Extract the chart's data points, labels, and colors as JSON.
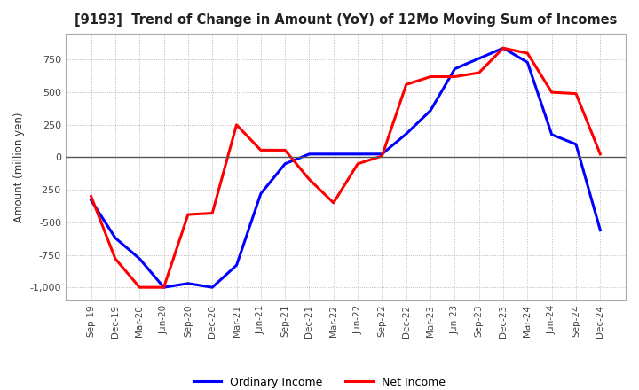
{
  "title": "[9193]  Trend of Change in Amount (YoY) of 12Mo Moving Sum of Incomes",
  "ylabel": "Amount (million yen)",
  "x_labels": [
    "Sep-19",
    "Dec-19",
    "Mar-20",
    "Jun-20",
    "Sep-20",
    "Dec-20",
    "Mar-21",
    "Jun-21",
    "Sep-21",
    "Dec-21",
    "Mar-22",
    "Jun-22",
    "Sep-22",
    "Dec-22",
    "Mar-23",
    "Jun-23",
    "Sep-23",
    "Dec-23",
    "Mar-24",
    "Jun-24",
    "Sep-24",
    "Dec-24"
  ],
  "ordinary_income": [
    -330,
    -620,
    -780,
    -1000,
    -970,
    -1000,
    -830,
    -280,
    -50,
    25,
    25,
    25,
    25,
    180,
    360,
    680,
    760,
    840,
    730,
    175,
    100,
    -560
  ],
  "net_income": [
    -300,
    -780,
    -1000,
    -1000,
    -440,
    -430,
    250,
    55,
    55,
    -170,
    -350,
    -50,
    10,
    560,
    620,
    620,
    650,
    840,
    800,
    500,
    490,
    25
  ],
  "ylim": [
    -1100,
    950
  ],
  "yticks": [
    -1000,
    -750,
    -500,
    -250,
    0,
    250,
    500,
    750
  ],
  "line_color_ordinary": "#0000ff",
  "line_color_net": "#ff0000",
  "legend_ordinary": "Ordinary Income",
  "legend_net": "Net Income",
  "background_color": "#ffffff",
  "grid_color": "#aaaaaa",
  "grid_style": "dotted"
}
